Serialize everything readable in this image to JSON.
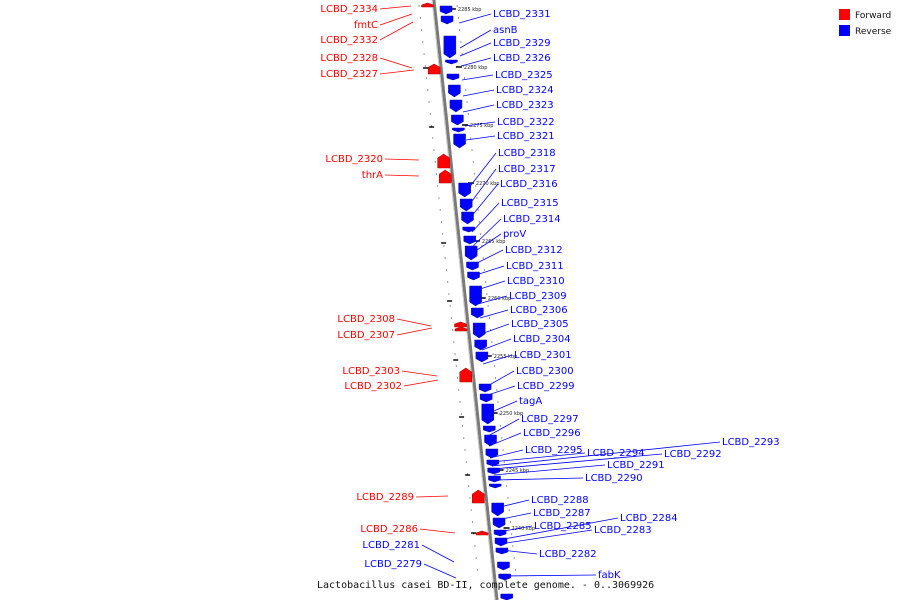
{
  "caption": "Lactobacillus casei BD-II, complete genome. - 0..3069926",
  "legend": [
    {
      "label": "Forward",
      "color": "#ff0000"
    },
    {
      "label": "Reverse",
      "color": "#0000ff"
    }
  ],
  "colors": {
    "forward": "#ff0000",
    "reverse": "#0000ff",
    "backbone": "#888888"
  },
  "ticks": [
    "2285 kbp",
    "2280 kbp",
    "2275 kbp",
    "2270 kbp",
    "2265 kbp",
    "2260 kbp",
    "2255 kbp",
    "2250 kbp",
    "2245 kbp",
    "2240 kbp"
  ],
  "forward_labels": [
    "LCBD_2334",
    "fmtC",
    "LCBD_2332",
    "LCBD_2328",
    "LCBD_2327",
    "LCBD_2320",
    "thrA",
    "LCBD_2308",
    "LCBD_2307",
    "LCBD_2303",
    "LCBD_2302",
    "LCBD_2289",
    "LCBD_2286",
    "LCBD_2281",
    "LCBD_2279"
  ],
  "reverse_labels": [
    "LCBD_2331",
    "asnB",
    "LCBD_2329",
    "LCBD_2326",
    "LCBD_2325",
    "LCBD_2324",
    "LCBD_2323",
    "LCBD_2322",
    "LCBD_2321",
    "LCBD_2318",
    "LCBD_2317",
    "LCBD_2316",
    "LCBD_2315",
    "LCBD_2314",
    "proV",
    "LCBD_2312",
    "LCBD_2311",
    "LCBD_2310",
    "LCBD_2309",
    "LCBD_2306",
    "LCBD_2305",
    "LCBD_2304",
    "LCBD_2301",
    "LCBD_2300",
    "LCBD_2299",
    "tagA",
    "LCBD_2297",
    "LCBD_2296",
    "LCBD_2295",
    "LCBD_2294",
    "LCBD_2293",
    "LCBD_2292",
    "LCBD_2291",
    "LCBD_2290",
    "LCBD_2288",
    "LCBD_2287",
    "LCBD_2285",
    "LCBD_2284",
    "LCBD_2283",
    "LCBD_2282",
    "fabK"
  ]
}
